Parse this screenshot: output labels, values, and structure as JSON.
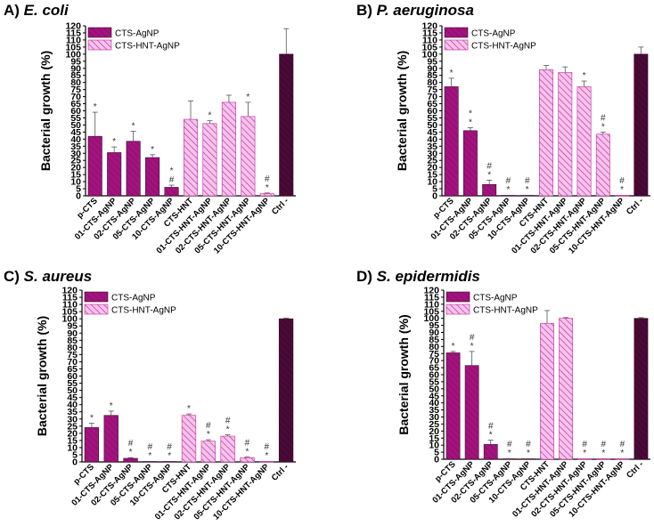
{
  "colors": {
    "cts_agnp": "#a2137e",
    "cts_hnt_agnp_fill": "#f6c4ec",
    "cts_hnt_agnp_stripe": "#c2289a",
    "ctrl": "#4a0a37",
    "axis": "#000000"
  },
  "chart_data": [
    {
      "type": "bar",
      "panel_label": "A)",
      "title": "E. coli",
      "ylabel": "Bacterial growth (%)",
      "ylim": [
        0,
        120
      ],
      "yticks": [
        0,
        5,
        10,
        15,
        20,
        25,
        30,
        35,
        40,
        45,
        50,
        55,
        60,
        65,
        70,
        75,
        80,
        85,
        90,
        95,
        100,
        105,
        110,
        115,
        120
      ],
      "legend": [
        "CTS-AgNP",
        "CTS-HNT-AgNP"
      ],
      "legend_position": "top-left",
      "categories": [
        "p-CTS",
        "01-CTS-AgNP",
        "02-CTS-AgNP",
        "05-CTS-AgNP",
        "10-CTS-AgNP",
        "CTS-HNT",
        "01-CTS-HNT-AgNP",
        "02-CTS-HNT-AgNP",
        "05-CTS-HNT-AgNP",
        "10-CTS-HNT-AgNP",
        "Ctrl -"
      ],
      "groups": [
        "CTS-AgNP",
        "CTS-AgNP",
        "CTS-AgNP",
        "CTS-AgNP",
        "CTS-AgNP",
        "CTS-HNT-AgNP",
        "CTS-HNT-AgNP",
        "CTS-HNT-AgNP",
        "CTS-HNT-AgNP",
        "CTS-HNT-AgNP",
        "Ctrl"
      ],
      "values": [
        42,
        30.5,
        38.5,
        27,
        6,
        54,
        51,
        66,
        56,
        1.5,
        100
      ],
      "errors": [
        17,
        4,
        7,
        2,
        1.5,
        13,
        2,
        5,
        10,
        0.5,
        18
      ],
      "annotations": [
        "*",
        "*",
        "*",
        "*",
        "*\n#",
        "",
        "*",
        "",
        "*",
        "#\n*",
        ""
      ]
    },
    {
      "type": "bar",
      "panel_label": "B)",
      "title": "P. aeruginosa",
      "ylabel": "Bacterial growth (%)",
      "ylim": [
        0,
        120
      ],
      "yticks": [
        0,
        5,
        10,
        15,
        20,
        25,
        30,
        35,
        40,
        45,
        50,
        55,
        60,
        65,
        70,
        75,
        80,
        85,
        90,
        95,
        100,
        105,
        110,
        115,
        120
      ],
      "legend": [
        "CTS-AgNP",
        "CTS-HNT-AgNP"
      ],
      "legend_position": "top-left",
      "categories": [
        "p-CTS",
        "01-CTS-AgNP",
        "02-CTS-AgNP",
        "05-CTS-AgNP",
        "10-CTS-AgNP",
        "CTS-HNT",
        "01-CTS-HNT-AgNP",
        "02-CTS-HNT-AgNP",
        "05-CTS-HNT-AgNP",
        "10-CTS-HNT-AgNP",
        "Ctrl -"
      ],
      "groups": [
        "CTS-AgNP",
        "CTS-AgNP",
        "CTS-AgNP",
        "CTS-AgNP",
        "CTS-AgNP",
        "CTS-HNT-AgNP",
        "CTS-HNT-AgNP",
        "CTS-HNT-AgNP",
        "CTS-HNT-AgNP",
        "CTS-HNT-AgNP",
        "Ctrl"
      ],
      "values": [
        77,
        46,
        8,
        0.3,
        0.3,
        89,
        87,
        77,
        43.5,
        0.3,
        100
      ],
      "errors": [
        6,
        2,
        3,
        0.2,
        0.2,
        3,
        4,
        4,
        1.5,
        0.2,
        5
      ],
      "annotations": [
        "*",
        "*\n*",
        "#\n*",
        "#\n*",
        "#\n*",
        "",
        "",
        "*",
        "#\n*",
        "#\n*",
        ""
      ]
    },
    {
      "type": "bar",
      "panel_label": "C)",
      "title": "S. aureus",
      "ylabel": "Bacterial growth (%)",
      "ylim": [
        0,
        120
      ],
      "yticks": [
        0,
        5,
        10,
        15,
        20,
        25,
        30,
        35,
        40,
        45,
        50,
        55,
        60,
        65,
        70,
        75,
        80,
        85,
        90,
        95,
        100,
        105,
        110,
        115,
        120
      ],
      "legend": [
        "CTS-AgNP",
        "CTS-HNT-AgNP"
      ],
      "legend_position": "top-left",
      "categories": [
        "p-CTS",
        "01-CTS-AgNP",
        "02-CTS-AgNP",
        "05-CTS-AgNP",
        "10-CTS-AgNP",
        "CTS-HNT",
        "01-CTS-HNT-AgNP",
        "02-CTS-HNT-AgNP",
        "05-CTS-HNT-AgNP",
        "10-CTS-HNT-AgNP",
        "Ctrl -"
      ],
      "groups": [
        "CTS-AgNP",
        "CTS-AgNP",
        "CTS-AgNP",
        "CTS-AgNP",
        "CTS-AgNP",
        "CTS-HNT-AgNP",
        "CTS-HNT-AgNP",
        "CTS-HNT-AgNP",
        "CTS-HNT-AgNP",
        "CTS-HNT-AgNP",
        "Ctrl"
      ],
      "values": [
        24,
        32.5,
        2.5,
        0.3,
        0.3,
        32.5,
        14.5,
        18,
        3,
        0.3,
        100
      ],
      "errors": [
        3,
        3,
        0.5,
        0.2,
        0.2,
        1,
        1,
        1,
        0.5,
        0.2,
        0.5
      ],
      "annotations": [
        "*",
        "*",
        "#\n*",
        "#\n*",
        "#\n*",
        "*",
        "#\n*",
        "#\n*",
        "#\n*",
        "#\n*",
        ""
      ]
    },
    {
      "type": "bar",
      "panel_label": "D)",
      "title": "S. epidermidis",
      "ylabel": "Bacterial growth (%)",
      "ylim": [
        0,
        120
      ],
      "yticks": [
        0,
        5,
        10,
        15,
        20,
        25,
        30,
        35,
        40,
        45,
        50,
        55,
        60,
        65,
        70,
        75,
        80,
        85,
        90,
        95,
        100,
        105,
        110,
        115,
        120
      ],
      "legend": [
        "CTS-AgNP",
        "CTS-HNT-AgNP"
      ],
      "legend_position": "top-left",
      "categories": [
        "p-CTS",
        "01-CTS-AgNP",
        "02-CTS-AgNP",
        "05-CTS-AgNP",
        "10-CTS-AgNP",
        "CTS-HNT",
        "01-CTS-HNT-AgNP",
        "02-CTS-HNT-AgNP",
        "05-CTS-HNT-AgNP",
        "10-CTS-HNT-AgNP",
        "Ctrl -"
      ],
      "groups": [
        "CTS-AgNP",
        "CTS-AgNP",
        "CTS-AgNP",
        "CTS-AgNP",
        "CTS-AgNP",
        "CTS-HNT-AgNP",
        "CTS-HNT-AgNP",
        "CTS-HNT-AgNP",
        "CTS-HNT-AgNP",
        "CTS-HNT-AgNP",
        "Ctrl"
      ],
      "values": [
        75.5,
        66.5,
        10.5,
        0.3,
        0.3,
        96.5,
        100,
        0.3,
        0.3,
        0.3,
        100
      ],
      "errors": [
        1,
        10,
        3,
        0.2,
        0.2,
        9,
        0.5,
        0.2,
        0.2,
        0.2,
        0.5
      ],
      "annotations": [
        "*",
        "#\n*",
        "#\n*",
        "#\n*",
        "#\n*",
        "",
        "",
        "#\n*",
        "#\n*",
        "#\n*",
        ""
      ]
    }
  ]
}
